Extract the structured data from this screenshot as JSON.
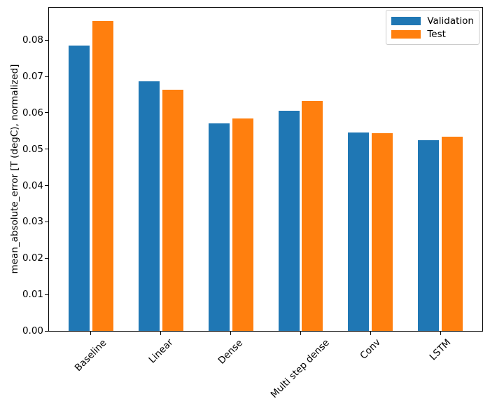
{
  "chart_data": {
    "type": "bar",
    "title": "",
    "categories": [
      "Baseline",
      "Linear",
      "Dense",
      "Multi step dense",
      "Conv",
      "LSTM"
    ],
    "series": [
      {
        "name": "Validation",
        "color": "#1f77b4",
        "values": [
          0.0785,
          0.0686,
          0.0571,
          0.0606,
          0.0545,
          0.0525
        ]
      },
      {
        "name": "Test",
        "color": "#ff7f0e",
        "values": [
          0.0852,
          0.0663,
          0.0584,
          0.0632,
          0.0543,
          0.0534
        ]
      }
    ],
    "xlabel": "",
    "ylabel": "mean_absolute_error [T (degC), normalized]",
    "ylim": [
      0,
      0.0889
    ],
    "xlim": [
      -0.6,
      5.6
    ],
    "yticks": [
      "0.00",
      "0.01",
      "0.02",
      "0.03",
      "0.04",
      "0.05",
      "0.06",
      "0.07",
      "0.08"
    ],
    "bar_width": 0.3,
    "bar_offset": 0.17,
    "grid": false,
    "legend_position": "upper right",
    "xtick_rotation_deg": 45,
    "axis_color": "#000000",
    "legend_border_color": "#cccccc"
  }
}
